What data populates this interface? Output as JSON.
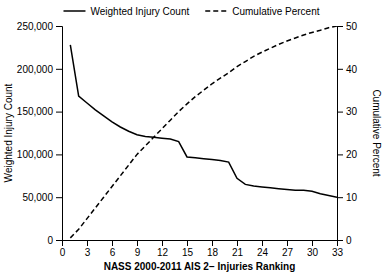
{
  "chart_data": {
    "type": "line",
    "xlabel": "NASS 2000-2011 AIS 2− Injuries Ranking",
    "ylabel": "Weighted Injury Count",
    "y2label": "Cumulative Percent",
    "x": [
      1,
      2,
      3,
      4,
      5,
      6,
      7,
      8,
      9,
      10,
      11,
      12,
      13,
      14,
      15,
      16,
      17,
      18,
      19,
      20,
      21,
      22,
      23,
      24,
      25,
      26,
      27,
      28,
      29,
      30,
      31,
      32,
      33
    ],
    "series": [
      {
        "name": "Weighted Injury Count",
        "color": "#000000",
        "line_style": "solid",
        "values": [
          228000,
          168000,
          160000,
          152000,
          145000,
          138000,
          132000,
          127000,
          123000,
          121000,
          120000,
          119000,
          118000,
          115000,
          97000,
          96000,
          95000,
          94000,
          93000,
          91000,
          72000,
          65000,
          63000,
          62000,
          61000,
          60000,
          59000,
          58000,
          58000,
          57000,
          54000,
          52000,
          50000
        ]
      },
      {
        "name": "Cumulative Percent",
        "color": "#000000",
        "line_style": "dashed",
        "axis": "y2",
        "values": [
          0.5,
          2.5,
          5.0,
          7.5,
          10.0,
          12.5,
          15.0,
          17.5,
          20.0,
          22.0,
          24.0,
          26.0,
          28.0,
          30.0,
          31.8,
          33.5,
          35.0,
          36.5,
          37.8,
          39.1,
          40.5,
          41.7,
          42.9,
          43.9,
          44.8,
          45.7,
          46.5,
          47.2,
          47.9,
          48.5,
          49.0,
          49.6,
          50.0
        ]
      }
    ],
    "xlim": [
      0,
      33
    ],
    "xticks": [
      0,
      3,
      6,
      9,
      12,
      15,
      18,
      21,
      24,
      27,
      30,
      33
    ],
    "ylim": [
      0,
      250000
    ],
    "yticks": [
      0,
      {
        "value": 50000,
        "label": "50,000"
      },
      {
        "value": 100000,
        "label": "100,000"
      },
      {
        "value": 150000,
        "label": "150,000"
      },
      {
        "value": 200000,
        "label": "200,000"
      },
      {
        "value": 250000,
        "label": "250,000"
      }
    ],
    "y2lim": [
      0,
      50
    ],
    "y2ticks": [
      0,
      10,
      20,
      30,
      40,
      50
    ],
    "legend": "upper center",
    "grid": false
  }
}
